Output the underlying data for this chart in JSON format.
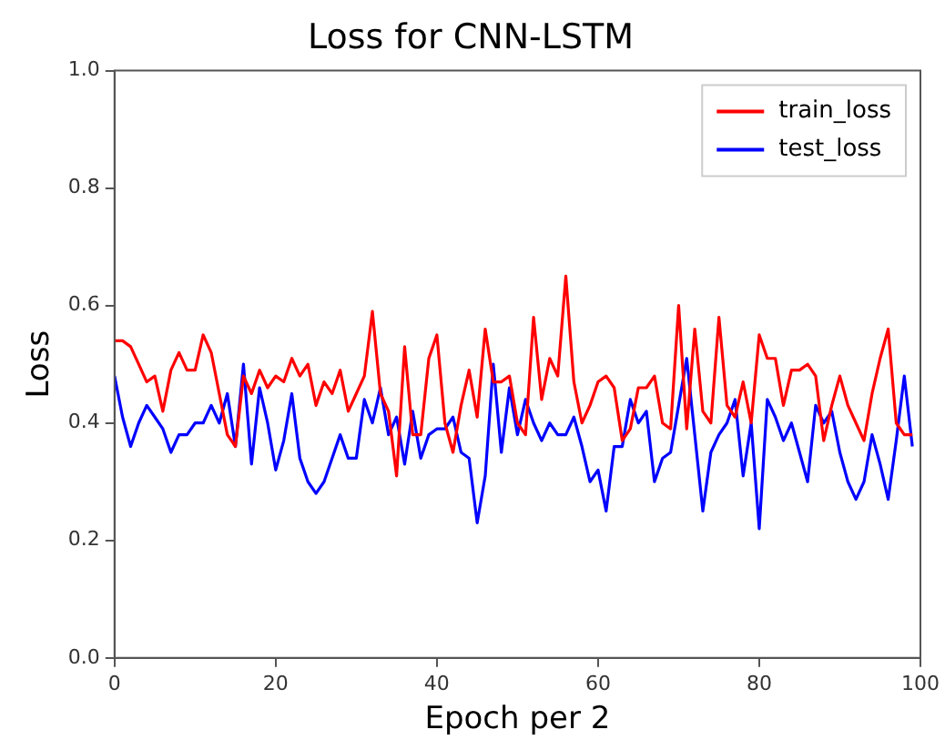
{
  "chart_data": {
    "type": "line",
    "title": "Loss for CNN-LSTM",
    "xlabel": "Epoch per 2",
    "ylabel": "Loss",
    "x": [
      0,
      1,
      2,
      3,
      4,
      5,
      6,
      7,
      8,
      9,
      10,
      11,
      12,
      13,
      14,
      15,
      16,
      17,
      18,
      19,
      20,
      21,
      22,
      23,
      24,
      25,
      26,
      27,
      28,
      29,
      30,
      31,
      32,
      33,
      34,
      35,
      36,
      37,
      38,
      39,
      40,
      41,
      42,
      43,
      44,
      45,
      46,
      47,
      48,
      49,
      50,
      51,
      52,
      53,
      54,
      55,
      56,
      57,
      58,
      59,
      60,
      61,
      62,
      63,
      64,
      65,
      66,
      67,
      68,
      69,
      70,
      71,
      72,
      73,
      74,
      75,
      76,
      77,
      78,
      79,
      80,
      81,
      82,
      83,
      84,
      85,
      86,
      87,
      88,
      89,
      90,
      91,
      92,
      93,
      94,
      95,
      96,
      97,
      98,
      99
    ],
    "series": [
      {
        "name": "train_loss",
        "color": "#ff0000",
        "values": [
          0.54,
          0.54,
          0.53,
          0.5,
          0.47,
          0.48,
          0.42,
          0.49,
          0.52,
          0.49,
          0.49,
          0.55,
          0.52,
          0.45,
          0.38,
          0.36,
          0.48,
          0.45,
          0.49,
          0.46,
          0.48,
          0.47,
          0.51,
          0.48,
          0.5,
          0.43,
          0.47,
          0.45,
          0.49,
          0.42,
          0.45,
          0.48,
          0.59,
          0.45,
          0.42,
          0.31,
          0.53,
          0.38,
          0.38,
          0.51,
          0.55,
          0.4,
          0.35,
          0.43,
          0.49,
          0.41,
          0.56,
          0.47,
          0.47,
          0.48,
          0.4,
          0.38,
          0.58,
          0.44,
          0.51,
          0.48,
          0.65,
          0.47,
          0.4,
          0.43,
          0.47,
          0.48,
          0.46,
          0.37,
          0.39,
          0.46,
          0.46,
          0.48,
          0.4,
          0.39,
          0.6,
          0.39,
          0.56,
          0.42,
          0.4,
          0.58,
          0.43,
          0.41,
          0.47,
          0.4,
          0.55,
          0.51,
          0.51,
          0.43,
          0.49,
          0.49,
          0.5,
          0.48,
          0.37,
          0.43,
          0.48,
          0.43,
          0.4,
          0.37,
          0.45,
          0.51,
          0.56,
          0.4,
          0.38,
          0.38
        ]
      },
      {
        "name": "test_loss",
        "color": "#0000ff",
        "values": [
          0.48,
          0.41,
          0.36,
          0.4,
          0.43,
          0.41,
          0.39,
          0.35,
          0.38,
          0.38,
          0.4,
          0.4,
          0.43,
          0.4,
          0.45,
          0.36,
          0.5,
          0.33,
          0.46,
          0.4,
          0.32,
          0.37,
          0.45,
          0.34,
          0.3,
          0.28,
          0.3,
          0.34,
          0.38,
          0.34,
          0.34,
          0.44,
          0.4,
          0.46,
          0.38,
          0.41,
          0.33,
          0.42,
          0.34,
          0.38,
          0.39,
          0.39,
          0.41,
          0.35,
          0.34,
          0.23,
          0.31,
          0.5,
          0.35,
          0.46,
          0.38,
          0.44,
          0.4,
          0.37,
          0.4,
          0.38,
          0.38,
          0.41,
          0.36,
          0.3,
          0.32,
          0.25,
          0.36,
          0.36,
          0.44,
          0.4,
          0.42,
          0.3,
          0.34,
          0.35,
          0.43,
          0.51,
          0.38,
          0.25,
          0.35,
          0.38,
          0.4,
          0.44,
          0.31,
          0.4,
          0.22,
          0.44,
          0.41,
          0.37,
          0.4,
          0.35,
          0.3,
          0.43,
          0.4,
          0.42,
          0.35,
          0.3,
          0.27,
          0.3,
          0.38,
          0.33,
          0.27,
          0.37,
          0.48,
          0.36
        ]
      }
    ],
    "xlim": [
      0,
      100
    ],
    "xticks": [
      0,
      20,
      40,
      60,
      80,
      100
    ],
    "ylim": [
      0,
      1
    ],
    "yticks": [
      {
        "value": 0,
        "label": "0.0"
      },
      {
        "value": 0.2,
        "label": "0.2"
      },
      {
        "value": 0.4,
        "label": "0.4"
      },
      {
        "value": 0.6,
        "label": "0.6"
      },
      {
        "value": 0.8,
        "label": "0.8"
      },
      {
        "value": 1,
        "label": "1.0"
      }
    ],
    "grid": false,
    "legend": "top right",
    "marker": "none",
    "line_style": "solid"
  }
}
